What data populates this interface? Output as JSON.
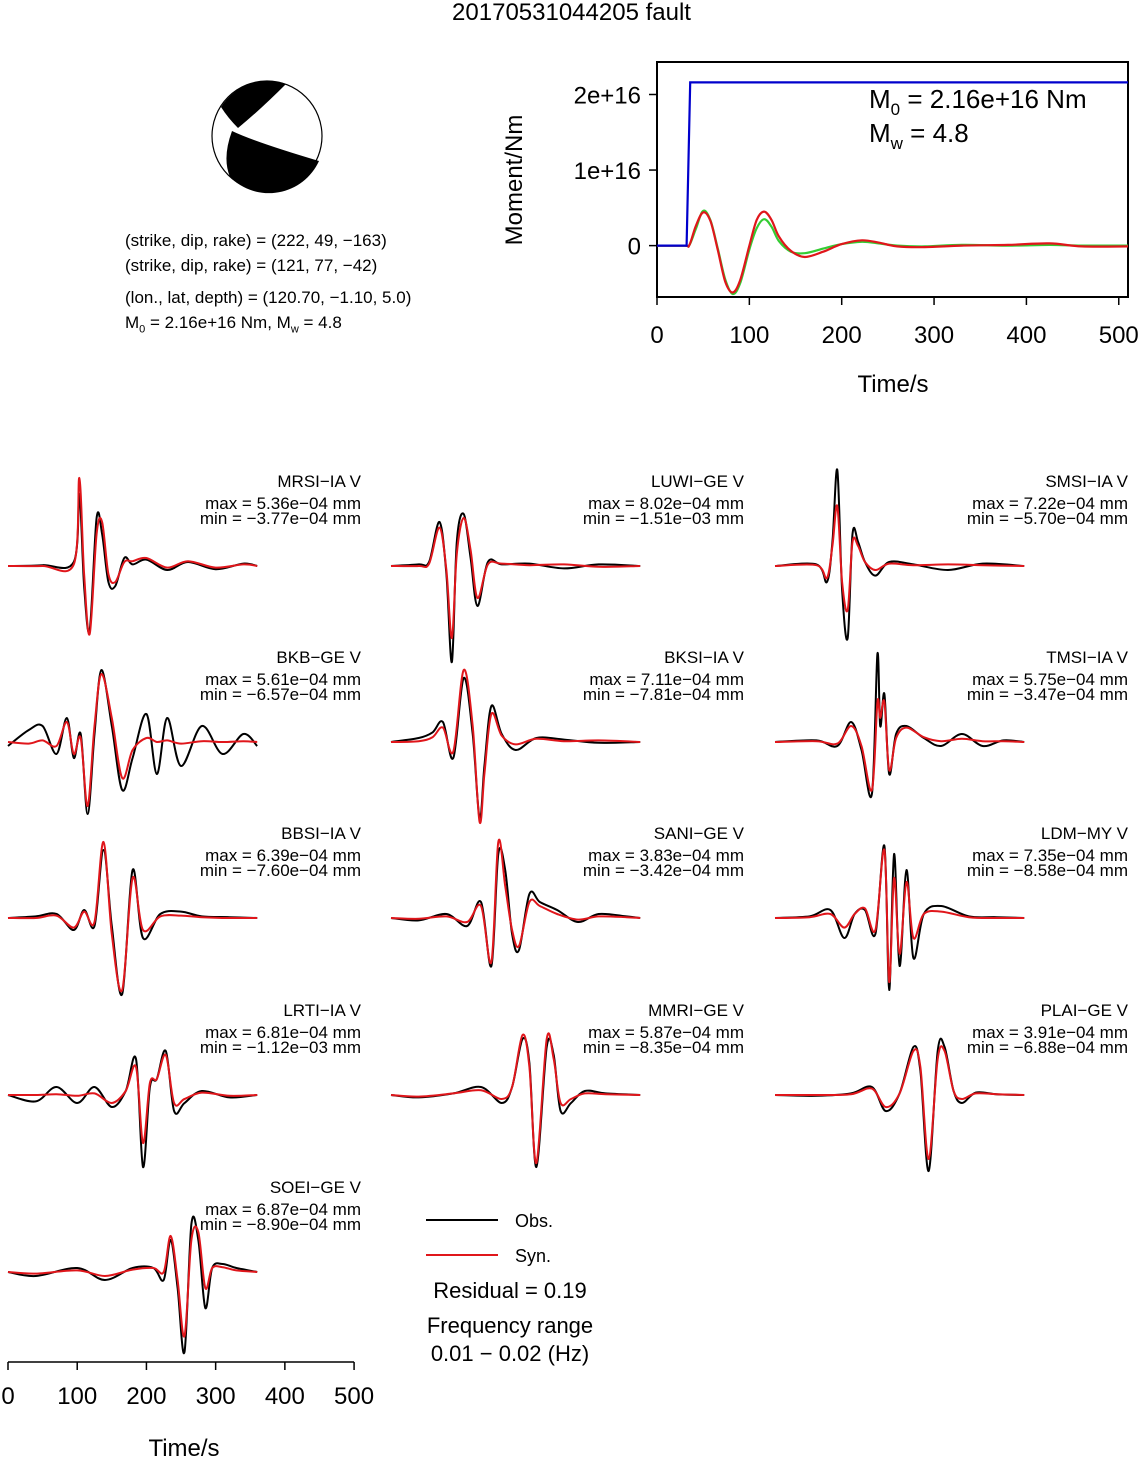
{
  "title": "20170531044205 fault",
  "mechanism": {
    "plane1": "(strike, dip, rake) = (222, 49, −163)",
    "plane2": "(strike, dip, rake) = (121, 77, −42)",
    "location": "(lon., lat, depth) = (120.70, −1.10, 5.0)",
    "moment_prefix": "M",
    "moment_sub": "0",
    "moment_value": " = 2.16e+16 Nm, M",
    "mw_sub": "w",
    "mw_value": " = 4.8"
  },
  "stf_panel": {
    "ylabel": "Moment/Nm",
    "xlabel": "Time/s",
    "m0_label_prefix": "M",
    "m0_label_sub": "0",
    "m0_label_value": " = 2.16e+16 Nm",
    "mw_label_prefix": "M",
    "mw_label_sub": "w",
    "mw_label_value": " = 4.8"
  },
  "legend": {
    "obs_label": "Obs.",
    "syn_label": "Syn.",
    "obs_color": "#000000",
    "syn_color": "#e0161b",
    "residual": "Residual = 0.19",
    "freq_title": "Frequency range",
    "freq_value": "0.01 − 0.02 (Hz)"
  },
  "bottom_axis": {
    "xlabel": "Time/s",
    "ticks": [
      "0",
      "100",
      "200",
      "300",
      "400",
      "500"
    ]
  },
  "chart_data": [
    {
      "type": "line",
      "title": "",
      "xlabel": "Time/s",
      "ylabel": "Moment/Nm",
      "xlim": [
        0,
        510
      ],
      "ylim": [
        -6800000000000000.0,
        2.43e+16
      ],
      "x_ticks": [
        "0",
        "100",
        "200",
        "300",
        "400",
        "500"
      ],
      "y_ticks": [
        "0",
        "1e+16",
        "2e+16"
      ],
      "series": [
        {
          "name": "cumulative moment",
          "color": "#0000cc",
          "x": [
            0,
            32,
            36,
            510
          ],
          "y": [
            0,
            0,
            2.16e+16,
            2.16e+16
          ]
        },
        {
          "name": "moment rate (green)",
          "color": "#33cc33",
          "x": [
            0,
            30,
            35,
            42,
            50,
            58,
            66,
            74,
            82,
            90,
            100,
            108,
            116,
            124,
            132,
            145,
            160,
            180,
            200,
            222,
            240,
            260,
            290,
            330,
            380,
            425,
            460,
            510
          ],
          "y": [
            0,
            0,
            50000000000000.0,
            2200000000000000.0,
            4600000000000000.0,
            3300000000000000.0,
            -500000000000000.0,
            -4500000000000000.0,
            -6400000000000000.0,
            -5000000000000000.0,
            -500000000000000.0,
            2300000000000000.0,
            3500000000000000.0,
            2500000000000000.0,
            600000000000000.0,
            -800000000000000.0,
            -1000000000000000.0,
            -400000000000000.0,
            200000000000000.0,
            500000000000000.0,
            300000000000000.0,
            0,
            -100000000000000.0,
            100000000000000.0,
            0,
            100000000000000.0,
            0,
            0
          ]
        },
        {
          "name": "moment rate (red)",
          "color": "#e0161b",
          "x": [
            0,
            30,
            35,
            42,
            50,
            58,
            66,
            74,
            82,
            90,
            100,
            108,
            116,
            124,
            132,
            145,
            160,
            180,
            200,
            222,
            240,
            260,
            290,
            330,
            380,
            425,
            460,
            510
          ],
          "y": [
            0,
            0,
            50000000000000.0,
            2600000000000000.0,
            4400000000000000.0,
            3200000000000000.0,
            -700000000000000.0,
            -4800000000000000.0,
            -6200000000000000.0,
            -4600000000000000.0,
            0,
            3400000000000000.0,
            4500000000000000.0,
            3400000000000000.0,
            1200000000000000.0,
            -700000000000000.0,
            -1500000000000000.0,
            -800000000000000.0,
            200000000000000.0,
            700000000000000.0,
            400000000000000.0,
            -100000000000000.0,
            -200000000000000.0,
            0,
            100000000000000.0,
            300000000000000.0,
            -100000000000000.0,
            -100000000000000.0
          ]
        }
      ]
    },
    {
      "type": "line",
      "title": "",
      "xlabel": "Time/s",
      "xlim": [
        0,
        510
      ],
      "x_ticks": [
        "0",
        "100",
        "200",
        "300",
        "400",
        "500"
      ],
      "series_names": [
        "Obs.",
        "Syn."
      ],
      "stations": [
        {
          "label": "MRSI−IA V",
          "max": "max = 5.36e−04 mm",
          "min": "min = −3.77e−04 mm",
          "x": [
            0,
            50,
            95,
            103,
            110,
            118,
            128,
            136,
            145,
            155,
            168,
            180,
            200,
            230,
            260,
            300,
            340,
            360
          ],
          "obs": [
            0,
            0.01,
            0.05,
            0.9,
            -0.25,
            -0.8,
            0.6,
            0.4,
            -0.2,
            -0.25,
            0.1,
            0.02,
            0.08,
            -0.05,
            0.05,
            -0.04,
            0.03,
            0
          ],
          "syn": [
            0,
            0,
            0.02,
            1.1,
            -0.1,
            -0.85,
            0.4,
            0.55,
            -0.1,
            -0.2,
            0.05,
            0.06,
            0.1,
            -0.02,
            0.06,
            -0.02,
            0.02,
            0
          ]
        },
        {
          "label": "LUWI−GE V",
          "max": "max = 8.02e−04 mm",
          "min": "min = −1.51e−03 mm",
          "x": [
            0,
            40,
            55,
            70,
            80,
            88,
            95,
            105,
            115,
            125,
            140,
            160,
            200,
            250,
            300,
            360
          ],
          "obs": [
            0,
            0.02,
            0.05,
            0.55,
            -0.1,
            -1.2,
            0.3,
            0.65,
            0.1,
            -0.5,
            0.05,
            0.02,
            0.03,
            -0.03,
            0.02,
            0
          ],
          "syn": [
            0,
            0,
            0.03,
            0.48,
            -0.05,
            -0.9,
            0.15,
            0.6,
            0.2,
            -0.4,
            0.02,
            0.03,
            0.01,
            0.02,
            -0.01,
            0
          ]
        },
        {
          "label": "SMSI−IA V",
          "max": "max = 7.22e−04 mm",
          "min": "min = −5.70e−04 mm",
          "x": [
            0,
            60,
            75,
            83,
            90,
            97,
            105,
            112,
            120,
            130,
            145,
            165,
            200,
            250,
            300,
            360
          ],
          "obs": [
            0,
            0.02,
            -0.2,
            0.3,
            1.2,
            -0.3,
            -0.9,
            0.4,
            0.3,
            0.05,
            -0.12,
            0.05,
            0.02,
            -0.05,
            0.03,
            0
          ],
          "syn": [
            0,
            0.01,
            -0.15,
            0.25,
            0.75,
            -0.2,
            -0.55,
            0.3,
            0.25,
            0.05,
            -0.05,
            0.03,
            0.01,
            0.02,
            0.01,
            0
          ]
        },
        {
          "label": "BKB−GE V",
          "max": "max = 5.61e−04 mm",
          "min": "min = −6.57e−04 mm",
          "x": [
            0,
            30,
            50,
            70,
            85,
            95,
            105,
            115,
            125,
            135,
            150,
            165,
            180,
            200,
            215,
            230,
            250,
            280,
            310,
            340,
            360
          ],
          "obs": [
            -0.05,
            0.15,
            0.2,
            -0.15,
            0.3,
            -0.2,
            0.1,
            -0.9,
            0.1,
            0.9,
            0.2,
            -0.6,
            -0.2,
            0.35,
            -0.4,
            0.3,
            -0.3,
            0.2,
            -0.15,
            0.1,
            -0.05
          ],
          "syn": [
            0,
            -0.02,
            0.02,
            -0.05,
            0.25,
            -0.15,
            0.05,
            -0.8,
            0.2,
            0.85,
            0.3,
            -0.45,
            -0.1,
            0.05,
            0.0,
            0.02,
            -0.02,
            0.01,
            0.0,
            0.01,
            0
          ]
        },
        {
          "label": "BKSI−IA V",
          "max": "max = 7.11e−04 mm",
          "min": "min = −7.81e−04 mm",
          "x": [
            0,
            40,
            60,
            75,
            90,
            105,
            118,
            128,
            135,
            145,
            160,
            180,
            210,
            250,
            300,
            360
          ],
          "obs": [
            0,
            0.05,
            0.12,
            0.25,
            -0.2,
            0.8,
            0.1,
            -0.95,
            -0.3,
            0.45,
            0.1,
            -0.1,
            0.05,
            0.03,
            -0.01,
            0
          ],
          "syn": [
            0,
            0.01,
            0.06,
            0.18,
            -0.12,
            0.9,
            0.2,
            -1.0,
            -0.4,
            0.35,
            0.08,
            -0.03,
            0.04,
            0.01,
            0.02,
            0
          ]
        },
        {
          "label": "TMSI−IA V",
          "max": "max = 5.75e−04 mm",
          "min": "min = −3.47e−04 mm",
          "x": [
            0,
            60,
            90,
            110,
            125,
            140,
            148,
            152,
            158,
            165,
            175,
            190,
            215,
            240,
            270,
            300,
            330,
            360
          ],
          "obs": [
            0,
            0.02,
            -0.05,
            0.25,
            -0.1,
            -0.65,
            1.1,
            0.2,
            0.6,
            -0.4,
            0.1,
            0.2,
            0.05,
            -0.05,
            0.1,
            -0.05,
            0.02,
            0
          ],
          "syn": [
            0,
            0.01,
            -0.02,
            0.2,
            -0.05,
            -0.6,
            0.5,
            0.3,
            0.5,
            -0.35,
            0.05,
            0.18,
            0.06,
            0.01,
            0.04,
            0.01,
            0.01,
            0
          ]
        },
        {
          "label": "BBSI−IA V",
          "max": "max = 6.39e−04 mm",
          "min": "min = −7.60e−04 mm",
          "x": [
            0,
            40,
            70,
            95,
            110,
            125,
            138,
            150,
            165,
            180,
            195,
            220,
            250,
            280,
            320,
            360
          ],
          "obs": [
            0,
            0.02,
            0.05,
            -0.15,
            0.1,
            -0.1,
            0.85,
            -0.1,
            -0.95,
            0.6,
            -0.25,
            0.05,
            0.08,
            0.02,
            0.01,
            0
          ],
          "syn": [
            0,
            0,
            0.03,
            -0.12,
            0.08,
            -0.05,
            0.95,
            -0.2,
            -0.9,
            0.5,
            -0.15,
            0.02,
            0.03,
            0.01,
            0,
            0
          ]
        },
        {
          "label": "SANI−GE V",
          "max": "max = 3.83e−04 mm",
          "min": "min = −3.42e−04 mm",
          "x": [
            0,
            40,
            80,
            110,
            130,
            145,
            155,
            165,
            175,
            185,
            200,
            215,
            240,
            270,
            300,
            340,
            360
          ],
          "obs": [
            0,
            -0.03,
            0.05,
            -0.1,
            0.2,
            -0.6,
            0.8,
            0.6,
            -0.2,
            -0.4,
            0.3,
            0.2,
            0.1,
            -0.05,
            0.05,
            0.02,
            0
          ],
          "syn": [
            0,
            -0.01,
            0.02,
            -0.05,
            0.15,
            -0.55,
            0.95,
            0.4,
            -0.15,
            -0.35,
            0.2,
            0.15,
            0.05,
            -0.02,
            0.02,
            0.01,
            0
          ]
        },
        {
          "label": "LDM−MY V",
          "max": "max = 7.35e−04 mm",
          "min": "min = −8.58e−04 mm",
          "x": [
            0,
            50,
            80,
            100,
            115,
            130,
            145,
            158,
            165,
            172,
            180,
            190,
            200,
            215,
            240,
            280,
            320,
            360
          ],
          "obs": [
            0,
            0.02,
            0.1,
            -0.25,
            0.05,
            0.1,
            -0.2,
            0.9,
            -0.9,
            0.8,
            -0.6,
            0.6,
            -0.5,
            0.05,
            0.15,
            0.02,
            0.01,
            0
          ],
          "syn": [
            0,
            0.01,
            0.05,
            -0.12,
            0.05,
            0.12,
            -0.15,
            0.85,
            -0.8,
            0.5,
            -0.45,
            0.45,
            -0.25,
            0.05,
            0.08,
            0.01,
            0,
            0
          ]
        },
        {
          "label": "LRTI−IA V",
          "max": "max = 6.81e−04 mm",
          "min": "min = −1.12e−03 mm",
          "x": [
            0,
            40,
            70,
            100,
            125,
            150,
            170,
            185,
            195,
            205,
            215,
            228,
            240,
            255,
            280,
            320,
            360
          ],
          "obs": [
            0,
            -0.08,
            0.1,
            -0.1,
            0.1,
            -0.15,
            0.05,
            0.45,
            -0.9,
            0.1,
            0.2,
            0.55,
            -0.2,
            -0.1,
            0.05,
            -0.03,
            0
          ],
          "syn": [
            0,
            0,
            0.01,
            -0.01,
            0.02,
            -0.1,
            0.05,
            0.35,
            -0.6,
            0.15,
            0.2,
            0.5,
            -0.1,
            -0.05,
            0.03,
            -0.01,
            0
          ]
        },
        {
          "label": "MMRI−GE V",
          "max": "max = 5.87e−04 mm",
          "min": "min = −8.35e−04 mm",
          "x": [
            0,
            40,
            90,
            130,
            160,
            175,
            190,
            200,
            210,
            225,
            235,
            245,
            260,
            280,
            310,
            360
          ],
          "obs": [
            0,
            -0.03,
            0.02,
            0.1,
            -0.1,
            0.1,
            0.7,
            0.4,
            -0.9,
            0.6,
            0.5,
            -0.2,
            -0.1,
            0.05,
            0.02,
            0
          ],
          "syn": [
            0,
            -0.02,
            0.02,
            0.06,
            -0.05,
            0.1,
            0.75,
            0.35,
            -0.85,
            0.7,
            0.45,
            -0.1,
            -0.05,
            0.02,
            0.01,
            0
          ]
        },
        {
          "label": "PLAI−GE V",
          "max": "max = 3.91e−04 mm",
          "min": "min = −6.88e−04 mm",
          "x": [
            0,
            60,
            110,
            140,
            160,
            180,
            200,
            210,
            222,
            235,
            245,
            258,
            270,
            290,
            320,
            360
          ],
          "obs": [
            0,
            -0.01,
            0.02,
            0.1,
            -0.2,
            0.02,
            0.6,
            0.3,
            -0.95,
            0.55,
            0.6,
            0.05,
            -0.1,
            0.03,
            0.01,
            0
          ],
          "syn": [
            0,
            0,
            0.01,
            0.08,
            -0.15,
            0.02,
            0.55,
            0.35,
            -0.8,
            0.45,
            0.55,
            0.05,
            -0.05,
            0.02,
            0.01,
            0
          ]
        },
        {
          "label": "SOEI−GE V",
          "max": "max = 6.87e−04 mm",
          "min": "min = −8.90e−04 mm",
          "x": [
            0,
            40,
            100,
            140,
            180,
            210,
            225,
            235,
            245,
            255,
            265,
            275,
            285,
            295,
            310,
            330,
            360
          ],
          "obs": [
            0,
            -0.05,
            0.05,
            -0.1,
            0.05,
            0.05,
            -0.1,
            0.4,
            -0.2,
            -1.0,
            0.6,
            0.4,
            -0.45,
            0.05,
            0.1,
            0.05,
            0
          ],
          "syn": [
            0,
            -0.02,
            0.02,
            -0.05,
            0.03,
            0.05,
            0.0,
            0.45,
            -0.1,
            -0.8,
            0.4,
            0.5,
            -0.2,
            0.05,
            0.06,
            0.02,
            0
          ]
        }
      ]
    }
  ]
}
